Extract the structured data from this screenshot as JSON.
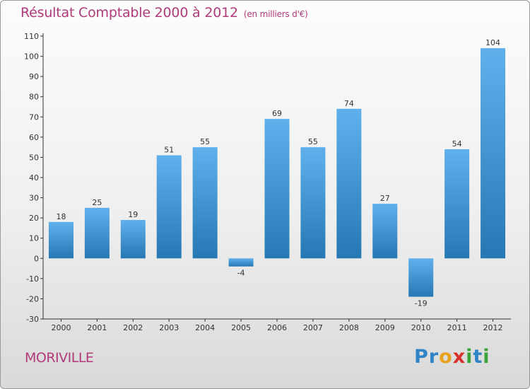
{
  "title": "Résultat Comptable 2000 à 2012",
  "subtitle": "(en milliers d'€)",
  "town": "MORIVILLE",
  "logo": {
    "letters": [
      "P",
      "r",
      "o",
      "x",
      "i",
      "t",
      "i"
    ],
    "colors": [
      "#2e84c6",
      "#2e84c6",
      "#e8a21c",
      "#d8312b",
      "#3aa33a",
      "#2e84c6",
      "#3aa33a"
    ]
  },
  "colors": {
    "bar_light": "#5fb0ec",
    "bar_dark": "#2678b4",
    "title": "#b03a7a",
    "axis": "#333333"
  },
  "chart_data": {
    "type": "bar",
    "title": "Résultat Comptable 2000 à 2012",
    "subtitle": "(en milliers d'€)",
    "categories": [
      "2000",
      "2001",
      "2002",
      "2003",
      "2004",
      "2005",
      "2006",
      "2007",
      "2008",
      "2009",
      "2010",
      "2011",
      "2012"
    ],
    "values": [
      18,
      25,
      19,
      51,
      55,
      -4,
      69,
      55,
      74,
      27,
      -19,
      54,
      104
    ],
    "ylim": [
      -30,
      110
    ],
    "yticks": [
      -30,
      -20,
      -10,
      0,
      10,
      20,
      30,
      40,
      50,
      60,
      70,
      80,
      90,
      100,
      110
    ],
    "xlabel": "",
    "ylabel": "",
    "grid": false
  }
}
